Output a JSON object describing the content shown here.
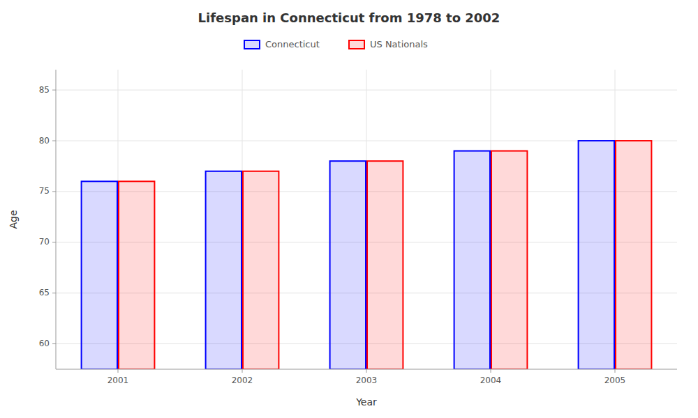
{
  "chart_data": {
    "type": "bar",
    "title": "Lifespan in Connecticut from 1978 to 2002",
    "xlabel": "Year",
    "ylabel": "Age",
    "categories": [
      "2001",
      "2002",
      "2003",
      "2004",
      "2005"
    ],
    "series": [
      {
        "name": "Connecticut",
        "color": "#0000ff",
        "values": [
          76,
          77,
          78,
          79,
          80
        ]
      },
      {
        "name": "US Nationals",
        "color": "#ff0000",
        "values": [
          76,
          77,
          78,
          79,
          80
        ]
      }
    ],
    "ylim": [
      57.5,
      87
    ],
    "yticks": [
      60,
      65,
      70,
      75,
      80,
      85
    ],
    "grid": true,
    "legend": "top"
  }
}
